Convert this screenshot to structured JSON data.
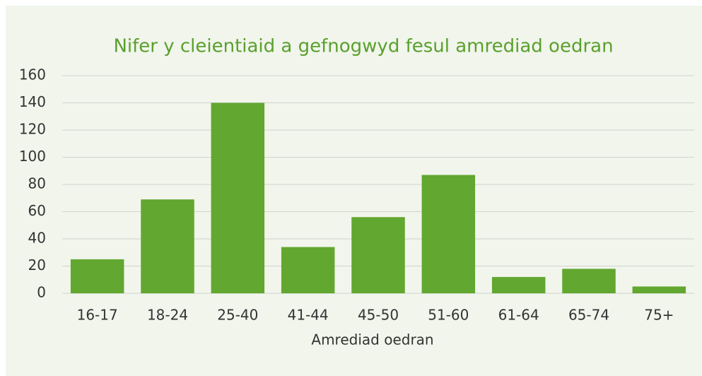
{
  "chart_data": {
    "type": "bar",
    "title": "Nifer y cleientiaid a gefnogwyd fesul amrediad oedran",
    "x_label": "Amrediad oedran",
    "categories": [
      "16-17",
      "18-24",
      "25-40",
      "41-44",
      "45-50",
      "51-60",
      "61-64",
      "65-74",
      "75+"
    ],
    "values": [
      25,
      69,
      140,
      34,
      56,
      87,
      12,
      18,
      5
    ],
    "color": "#62a730",
    "ylim": [
      0,
      160
    ],
    "yticks": [
      0,
      20,
      40,
      60,
      80,
      100,
      120,
      140,
      160
    ],
    "grid": true
  }
}
